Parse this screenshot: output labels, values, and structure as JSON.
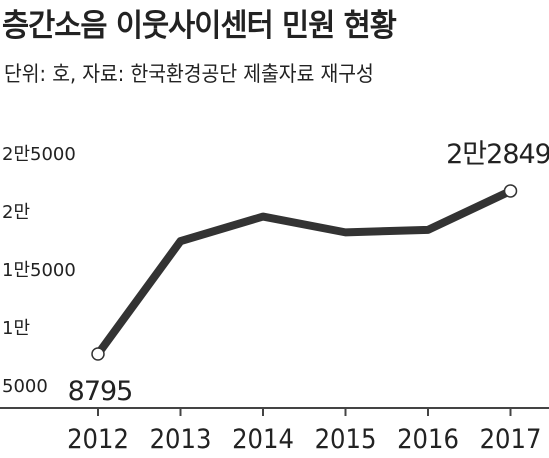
{
  "chart_data": {
    "type": "line",
    "title": "층간소음 이웃사이센터 민원 현황",
    "subtitle": "단위: 호, 자료: 한국환경공단 제출자료 재구성",
    "x": [
      "2012",
      "2013",
      "2014",
      "2015",
      "2016",
      "2017"
    ],
    "series": [
      {
        "values": [
          8795,
          18524,
          20641,
          19278,
          19495,
          22849
        ],
        "data_labels": [
          "8795",
          "",
          "",
          "",
          "",
          "2만2849"
        ]
      }
    ],
    "yticks": [
      5000,
      10000,
      15000,
      20000,
      25000
    ],
    "ytick_labels": [
      "5000",
      "1만",
      "1만5000",
      "2만",
      "2만5000"
    ],
    "ylim": [
      5000,
      25000
    ],
    "line_color": "#333333",
    "marker_fill": "#ffffff",
    "grid": false,
    "legend": "none"
  }
}
